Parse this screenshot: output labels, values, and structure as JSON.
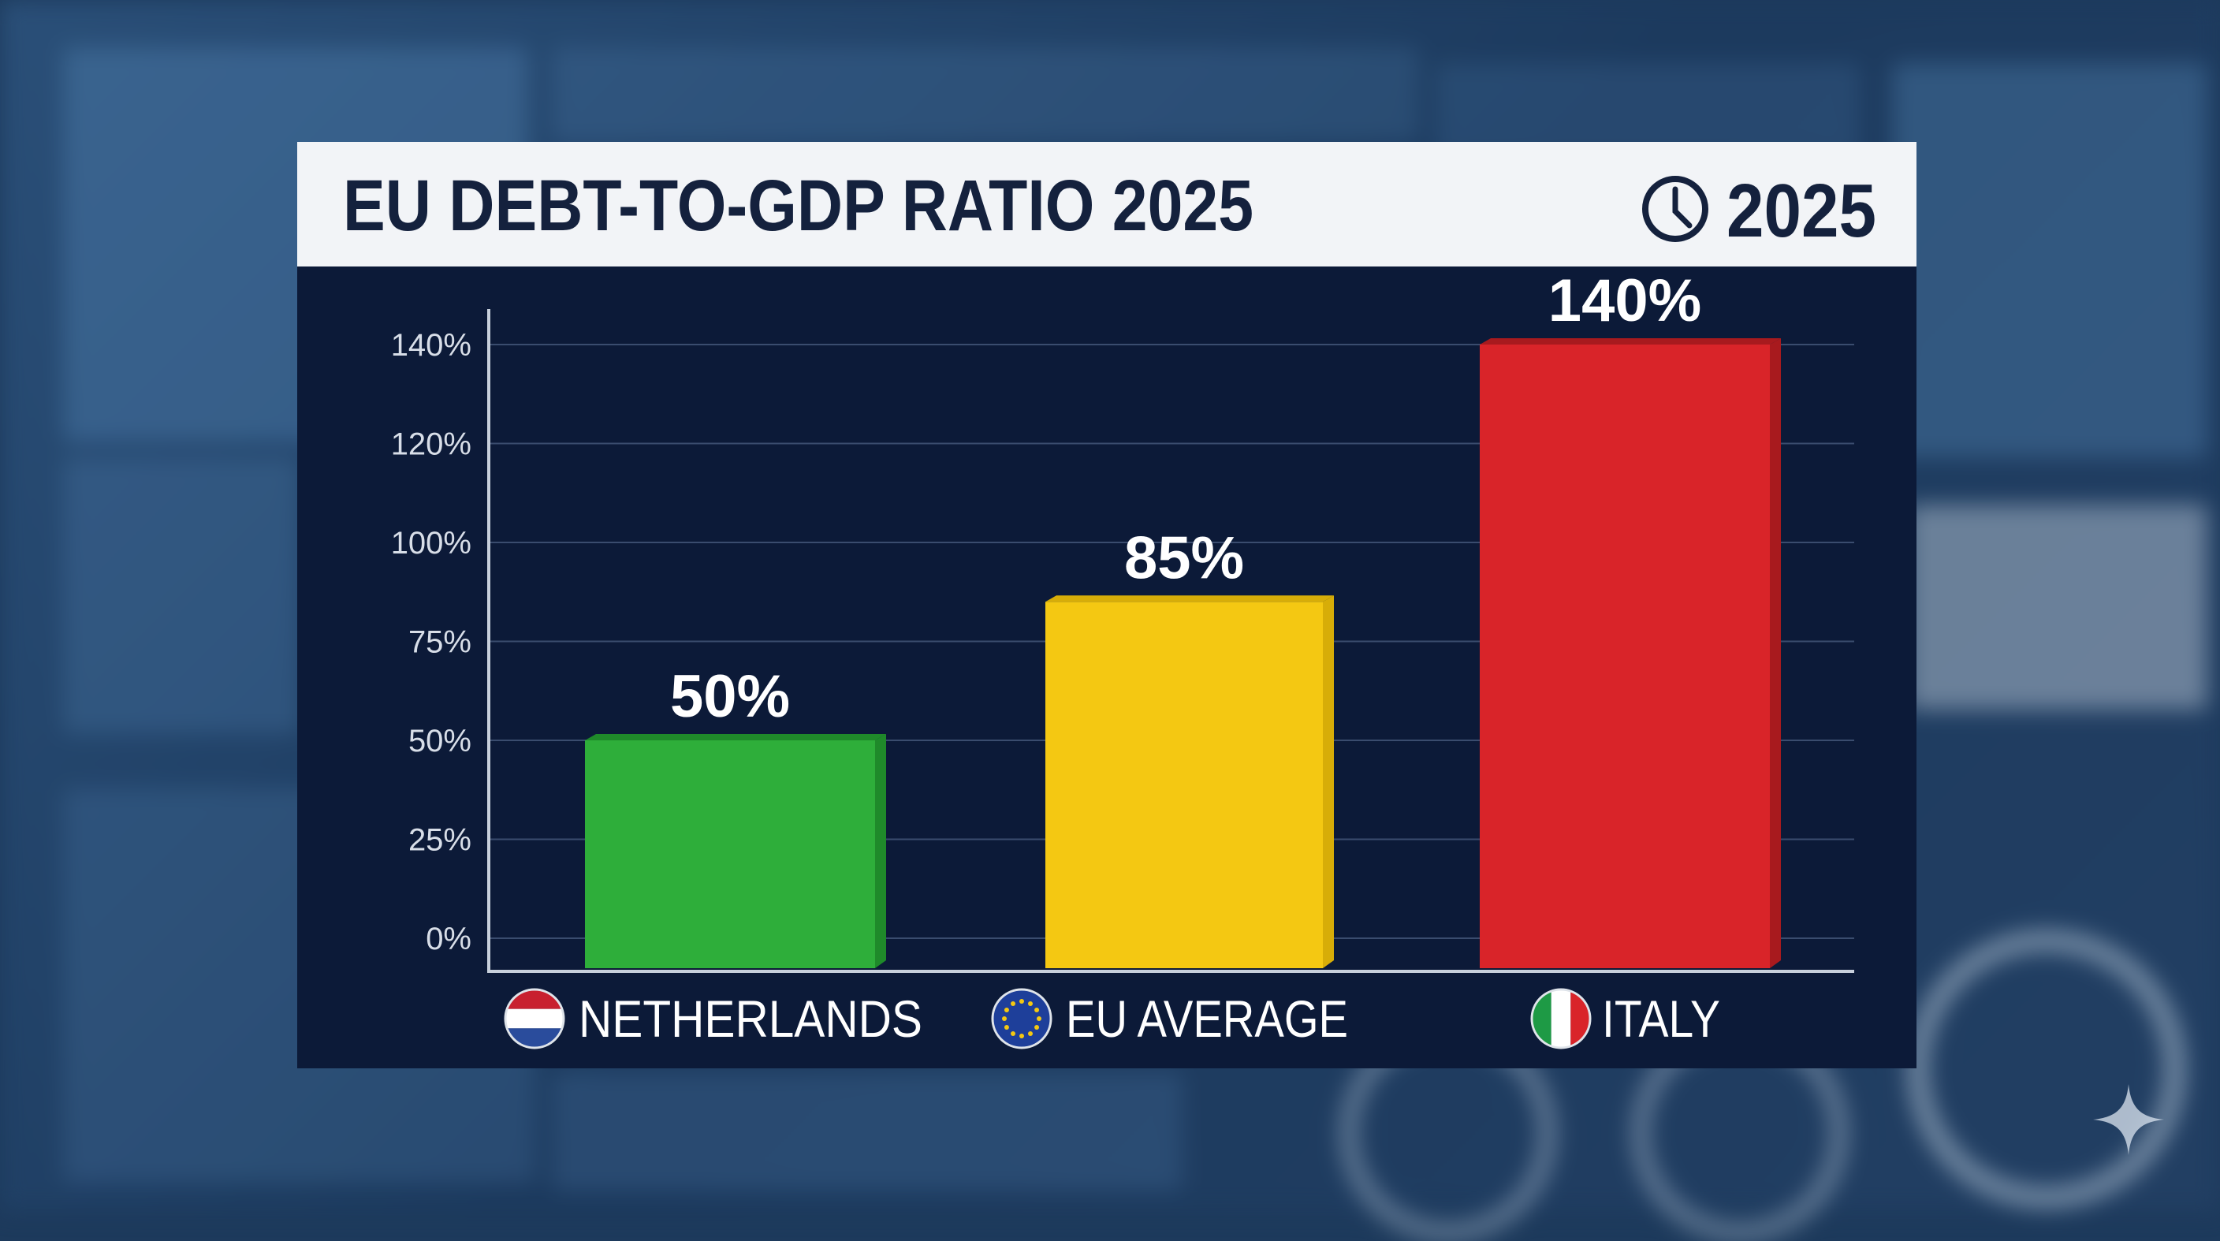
{
  "header": {
    "title": "EU DEBT-TO-GDP RATIO 2025",
    "year_badge": "2025",
    "year_icon": "clock-icon"
  },
  "colors": {
    "header_bg": "#f2f4f7",
    "title_text": "#14213d",
    "panel_bg": "#0c1a38",
    "netherlands": "#2eae3a",
    "eu_average": "#f4c812",
    "italy": "#d92429"
  },
  "chart_data": {
    "type": "bar",
    "title": "EU DEBT-TO-GDP RATIO 2025",
    "categories": [
      "NETHERLANDS",
      "EU AVERAGE",
      "ITALY"
    ],
    "flags": [
      "netherlands-flag-icon",
      "eu-flag-icon",
      "italy-flag-icon"
    ],
    "values": [
      50,
      85,
      140
    ],
    "data_labels": [
      "50%",
      "85%",
      "140%"
    ],
    "yticks": [
      0,
      25,
      50,
      75,
      100,
      120,
      140
    ],
    "ytick_labels": [
      "0%",
      "25%",
      "50%",
      "75%",
      "100%",
      "120%",
      "140%"
    ],
    "ylim": [
      0,
      140
    ],
    "grid": true,
    "xlabel": "",
    "ylabel": ""
  }
}
